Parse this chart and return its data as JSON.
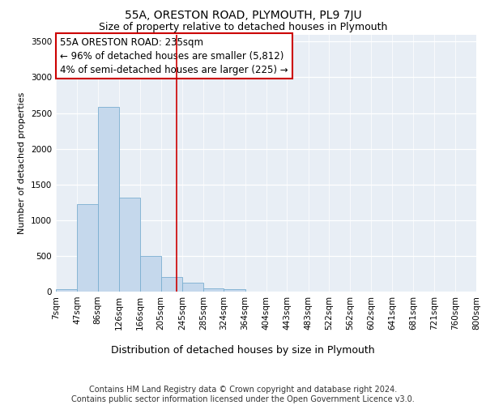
{
  "title": "55A, ORESTON ROAD, PLYMOUTH, PL9 7JU",
  "subtitle": "Size of property relative to detached houses in Plymouth",
  "xlabel": "Distribution of detached houses by size in Plymouth",
  "ylabel": "Number of detached properties",
  "bar_color": "#c5d8ec",
  "bar_edge_color": "#7aaed0",
  "background_color": "#e8eef5",
  "vline_x": 235,
  "vline_color": "#cc0000",
  "annotation_text": "55A ORESTON ROAD: 235sqm\n← 96% of detached houses are smaller (5,812)\n4% of semi-detached houses are larger (225) →",
  "annotation_box_color": "white",
  "annotation_box_edge": "#cc0000",
  "bin_edges": [
    7,
    47,
    86,
    126,
    166,
    205,
    245,
    285,
    324,
    364,
    404,
    443,
    483,
    522,
    562,
    602,
    641,
    681,
    721,
    760,
    800
  ],
  "bin_labels": [
    "7sqm",
    "47sqm",
    "86sqm",
    "126sqm",
    "166sqm",
    "205sqm",
    "245sqm",
    "285sqm",
    "324sqm",
    "364sqm",
    "404sqm",
    "443sqm",
    "483sqm",
    "522sqm",
    "562sqm",
    "602sqm",
    "641sqm",
    "681sqm",
    "721sqm",
    "760sqm",
    "800sqm"
  ],
  "bar_heights": [
    30,
    1220,
    2580,
    1320,
    500,
    200,
    120,
    50,
    30,
    5,
    5,
    0,
    0,
    0,
    0,
    0,
    0,
    0,
    0,
    0
  ],
  "ylim": [
    0,
    3600
  ],
  "yticks": [
    0,
    500,
    1000,
    1500,
    2000,
    2500,
    3000,
    3500
  ],
  "footer_line1": "Contains HM Land Registry data © Crown copyright and database right 2024.",
  "footer_line2": "Contains public sector information licensed under the Open Government Licence v3.0.",
  "title_fontsize": 10,
  "subtitle_fontsize": 9,
  "xlabel_fontsize": 9,
  "ylabel_fontsize": 8,
  "tick_fontsize": 7.5,
  "annotation_fontsize": 8.5,
  "footer_fontsize": 7
}
